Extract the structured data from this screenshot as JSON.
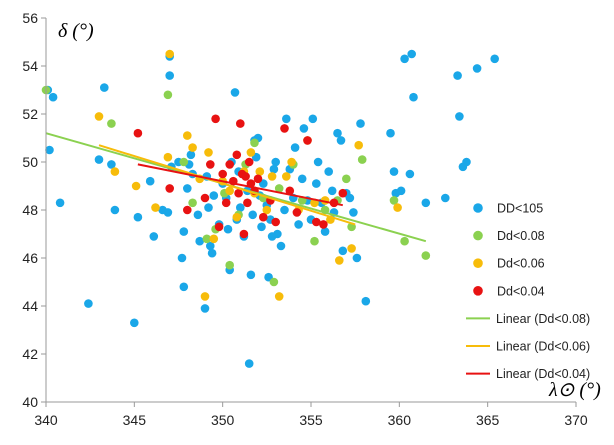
{
  "chart_data": {
    "type": "scatter",
    "xlabel": "λ⊙ (°)",
    "ylabel": "δ (°)",
    "xlim": [
      340,
      370
    ],
    "ylim": [
      40,
      56
    ],
    "x_ticks": [
      340,
      345,
      350,
      355,
      360,
      365,
      370
    ],
    "y_ticks": [
      40,
      42,
      44,
      46,
      48,
      50,
      52,
      54,
      56
    ],
    "grid": false,
    "legend_position": "right",
    "series": [
      {
        "name": "DD<105",
        "color": "#1aa7e8",
        "points": [
          [
            340.1,
            53.0
          ],
          [
            340.2,
            50.5
          ],
          [
            340.4,
            52.7
          ],
          [
            340.8,
            48.3
          ],
          [
            342.4,
            44.1
          ],
          [
            343.0,
            50.1
          ],
          [
            343.3,
            53.1
          ],
          [
            343.7,
            49.9
          ],
          [
            343.9,
            48.0
          ],
          [
            345.0,
            43.3
          ],
          [
            345.2,
            47.7
          ],
          [
            345.9,
            49.2
          ],
          [
            346.1,
            46.9
          ],
          [
            346.6,
            48.0
          ],
          [
            346.9,
            47.9
          ],
          [
            347.0,
            53.6
          ],
          [
            347.0,
            54.4
          ],
          [
            347.1,
            49.8
          ],
          [
            347.5,
            50.0
          ],
          [
            347.7,
            46.0
          ],
          [
            347.8,
            47.1
          ],
          [
            347.8,
            44.8
          ],
          [
            348.0,
            48.9
          ],
          [
            348.1,
            49.9
          ],
          [
            348.2,
            50.3
          ],
          [
            348.3,
            49.5
          ],
          [
            348.6,
            47.8
          ],
          [
            348.7,
            46.7
          ],
          [
            349.0,
            43.9
          ],
          [
            349.1,
            49.4
          ],
          [
            349.2,
            48.1
          ],
          [
            349.3,
            46.5
          ],
          [
            349.4,
            46.2
          ],
          [
            349.5,
            48.6
          ],
          [
            349.8,
            47.4
          ],
          [
            350.0,
            49.1
          ],
          [
            350.2,
            48.5
          ],
          [
            350.3,
            47.2
          ],
          [
            350.4,
            45.5
          ],
          [
            350.5,
            50.0
          ],
          [
            350.7,
            52.9
          ],
          [
            350.8,
            47.6
          ],
          [
            350.9,
            49.6
          ],
          [
            351.0,
            48.1
          ],
          [
            351.2,
            46.9
          ],
          [
            351.4,
            48.8
          ],
          [
            351.5,
            41.6
          ],
          [
            351.6,
            45.3
          ],
          [
            351.7,
            47.8
          ],
          [
            351.8,
            50.9
          ],
          [
            351.9,
            50.2
          ],
          [
            352.0,
            51.0
          ],
          [
            352.1,
            48.6
          ],
          [
            352.2,
            47.3
          ],
          [
            352.3,
            49.1
          ],
          [
            352.5,
            48.2
          ],
          [
            352.6,
            45.2
          ],
          [
            352.7,
            47.6
          ],
          [
            352.8,
            46.9
          ],
          [
            352.9,
            49.7
          ],
          [
            353.0,
            50.0
          ],
          [
            353.1,
            47.0
          ],
          [
            353.3,
            46.5
          ],
          [
            353.5,
            48.0
          ],
          [
            353.6,
            51.8
          ],
          [
            353.8,
            49.7
          ],
          [
            354.0,
            48.5
          ],
          [
            354.1,
            50.6
          ],
          [
            354.3,
            47.4
          ],
          [
            354.5,
            49.3
          ],
          [
            354.6,
            51.4
          ],
          [
            354.8,
            48.4
          ],
          [
            355.0,
            47.6
          ],
          [
            355.1,
            51.8
          ],
          [
            355.3,
            49.1
          ],
          [
            355.4,
            50.0
          ],
          [
            355.6,
            48.3
          ],
          [
            355.8,
            47.1
          ],
          [
            356.0,
            49.6
          ],
          [
            356.2,
            48.8
          ],
          [
            356.3,
            47.9
          ],
          [
            356.5,
            51.2
          ],
          [
            356.7,
            50.9
          ],
          [
            356.8,
            46.3
          ],
          [
            357.0,
            48.7
          ],
          [
            357.2,
            48.5
          ],
          [
            357.4,
            47.9
          ],
          [
            357.6,
            46.0
          ],
          [
            357.8,
            51.6
          ],
          [
            358.1,
            44.2
          ],
          [
            359.5,
            51.2
          ],
          [
            359.7,
            49.6
          ],
          [
            359.8,
            48.7
          ],
          [
            360.1,
            48.8
          ],
          [
            360.3,
            54.3
          ],
          [
            360.6,
            49.5
          ],
          [
            360.7,
            54.5
          ],
          [
            360.8,
            52.7
          ],
          [
            361.5,
            48.3
          ],
          [
            362.6,
            48.5
          ],
          [
            363.3,
            53.6
          ],
          [
            363.4,
            51.9
          ],
          [
            363.6,
            49.8
          ],
          [
            363.8,
            50.0
          ],
          [
            364.4,
            53.9
          ],
          [
            365.4,
            54.3
          ]
        ]
      },
      {
        "name": "Dd<0.08",
        "color": "#8bd150",
        "points": [
          [
            340.0,
            53.0
          ],
          [
            343.7,
            51.6
          ],
          [
            346.9,
            52.8
          ],
          [
            347.8,
            50.0
          ],
          [
            348.3,
            48.3
          ],
          [
            349.1,
            46.8
          ],
          [
            349.6,
            47.2
          ],
          [
            350.1,
            48.7
          ],
          [
            350.4,
            45.7
          ],
          [
            350.9,
            47.8
          ],
          [
            351.3,
            49.9
          ],
          [
            351.8,
            50.8
          ],
          [
            352.3,
            48.5
          ],
          [
            352.9,
            45.0
          ],
          [
            353.2,
            48.9
          ],
          [
            354.0,
            49.9
          ],
          [
            354.5,
            48.4
          ],
          [
            355.2,
            46.7
          ],
          [
            355.8,
            48.0
          ],
          [
            356.5,
            48.4
          ],
          [
            357.0,
            49.3
          ],
          [
            357.3,
            47.3
          ],
          [
            357.9,
            50.1
          ],
          [
            359.7,
            48.4
          ],
          [
            360.3,
            46.7
          ],
          [
            361.5,
            46.1
          ]
        ]
      },
      {
        "name": "Dd<0.06",
        "color": "#f7bc0a",
        "points": [
          [
            343.0,
            51.9
          ],
          [
            343.9,
            49.6
          ],
          [
            345.1,
            49.0
          ],
          [
            346.2,
            48.1
          ],
          [
            346.9,
            50.2
          ],
          [
            347.0,
            54.5
          ],
          [
            348.0,
            51.1
          ],
          [
            348.3,
            50.6
          ],
          [
            348.7,
            49.3
          ],
          [
            349.0,
            44.4
          ],
          [
            349.2,
            50.4
          ],
          [
            349.5,
            46.8
          ],
          [
            350.0,
            49.2
          ],
          [
            350.4,
            48.8
          ],
          [
            350.8,
            47.7
          ],
          [
            351.2,
            49.6
          ],
          [
            351.6,
            50.4
          ],
          [
            351.8,
            48.7
          ],
          [
            352.1,
            49.6
          ],
          [
            352.5,
            48.0
          ],
          [
            352.8,
            49.4
          ],
          [
            353.2,
            44.4
          ],
          [
            353.6,
            49.4
          ],
          [
            353.9,
            50.0
          ],
          [
            354.3,
            48.0
          ],
          [
            354.8,
            50.9
          ],
          [
            355.2,
            48.3
          ],
          [
            355.8,
            48.4
          ],
          [
            356.1,
            47.6
          ],
          [
            356.6,
            45.9
          ],
          [
            357.3,
            46.4
          ],
          [
            357.7,
            50.7
          ],
          [
            359.9,
            48.1
          ]
        ]
      },
      {
        "name": "Dd<0.04",
        "color": "#e81212",
        "points": [
          [
            345.2,
            51.2
          ],
          [
            347.0,
            48.9
          ],
          [
            348.0,
            48.0
          ],
          [
            349.0,
            48.5
          ],
          [
            349.3,
            49.9
          ],
          [
            349.6,
            51.8
          ],
          [
            349.8,
            47.3
          ],
          [
            350.0,
            49.5
          ],
          [
            350.2,
            48.3
          ],
          [
            350.4,
            49.9
          ],
          [
            350.6,
            49.2
          ],
          [
            350.8,
            50.3
          ],
          [
            350.9,
            48.7
          ],
          [
            351.0,
            51.6
          ],
          [
            351.1,
            49.5
          ],
          [
            351.2,
            47.0
          ],
          [
            351.3,
            49.4
          ],
          [
            351.4,
            48.3
          ],
          [
            351.5,
            50.0
          ],
          [
            351.6,
            49.1
          ],
          [
            351.8,
            48.8
          ],
          [
            352.0,
            49.3
          ],
          [
            352.3,
            47.7
          ],
          [
            352.7,
            48.4
          ],
          [
            353.0,
            47.5
          ],
          [
            353.5,
            51.4
          ],
          [
            353.8,
            48.8
          ],
          [
            354.2,
            47.9
          ],
          [
            354.8,
            50.9
          ],
          [
            355.3,
            47.5
          ],
          [
            355.7,
            47.4
          ],
          [
            356.3,
            48.3
          ],
          [
            356.8,
            48.7
          ]
        ]
      }
    ],
    "trendlines": [
      {
        "name": "Linear (Dd<0.08)",
        "color": "#8bd150",
        "x": [
          340,
          361.5
        ],
        "y": [
          51.2,
          46.7
        ]
      },
      {
        "name": "Linear (Dd<0.06)",
        "color": "#f7bc0a",
        "x": [
          343.0,
          357.5
        ],
        "y": [
          50.7,
          47.4
        ]
      },
      {
        "name": "Linear (Dd<0.04)",
        "color": "#e81212",
        "x": [
          345.2,
          356.8
        ],
        "y": [
          49.9,
          48.2
        ]
      }
    ]
  }
}
